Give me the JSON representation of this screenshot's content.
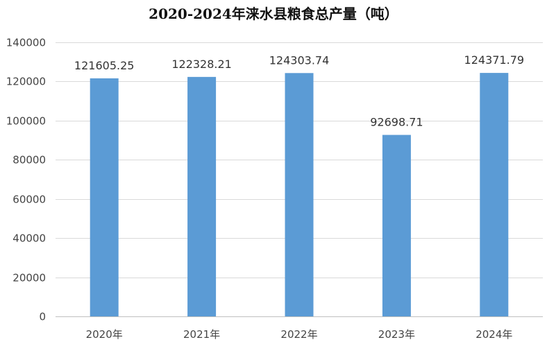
{
  "chart_data": {
    "type": "bar",
    "title": "2020-2024年涞水县粮食总产量（吨）",
    "categories": [
      "2020年",
      "2021年",
      "2022年",
      "2023年",
      "2024年"
    ],
    "values": [
      121605.25,
      122328.21,
      124303.74,
      92698.71,
      124371.79
    ],
    "value_labels": [
      "121605.25",
      "122328.21",
      "124303.74",
      "92698.71",
      "124371.79"
    ],
    "yticks": [
      "0",
      "20000",
      "40000",
      "60000",
      "80000",
      "100000",
      "120000",
      "140000"
    ],
    "ylim": [
      0,
      140000
    ],
    "xlabel": "",
    "ylabel": "",
    "grid": true,
    "bar_color": "#5b9bd5"
  }
}
